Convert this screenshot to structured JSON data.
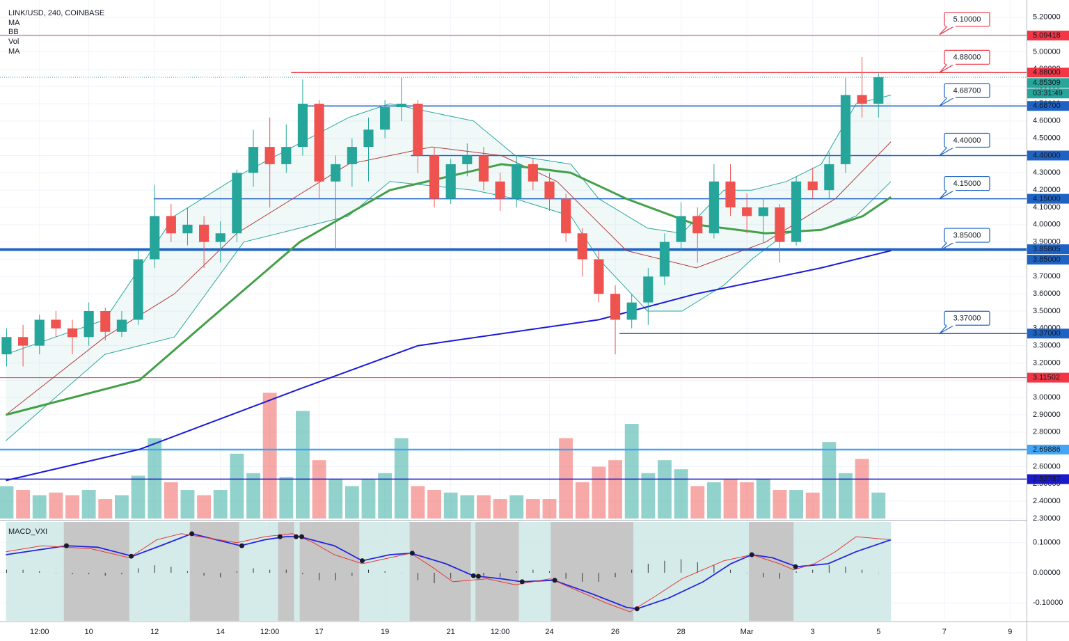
{
  "chart_data": {
    "type": "candlestick",
    "title": "LINK/USD, 240, COINBASE",
    "indicator_labels": [
      "MA",
      "BB",
      "Vol",
      "MA"
    ],
    "xlim": [
      7.3,
      38.5
    ],
    "xticks": [
      {
        "value": 8.5,
        "label": "12:00"
      },
      10,
      12,
      14,
      {
        "value": 15.5,
        "label": "12:00"
      },
      17,
      19,
      21,
      {
        "value": 22.5,
        "label": "12:00"
      },
      24,
      26,
      28,
      {
        "value": 30,
        "label": "Mar"
      },
      {
        "value": 32,
        "label": "3"
      },
      {
        "value": 34,
        "label": "5"
      },
      {
        "value": 36,
        "label": "7"
      },
      {
        "value": 38,
        "label": "9"
      }
    ],
    "ylim": [
      2.3,
      5.3
    ],
    "yticks": [
      {
        "value": 5.2,
        "label": "5.20000"
      },
      {
        "value": 5.1,
        "label": "5.10000"
      },
      {
        "value": 5.0,
        "label": "5.00000"
      },
      {
        "value": 4.9,
        "label": "4.90000"
      },
      {
        "value": 4.8,
        "label": "4.80000"
      },
      {
        "value": 4.7,
        "label": "4.70000"
      },
      {
        "value": 4.6,
        "label": "4.60000"
      },
      {
        "value": 4.5,
        "label": "4.50000"
      },
      {
        "value": 4.4,
        "label": "4.40000"
      },
      {
        "value": 4.3,
        "label": "4.30000"
      },
      {
        "value": 4.2,
        "label": "4.20000"
      },
      {
        "value": 4.1,
        "label": "4.10000"
      },
      {
        "value": 4.0,
        "label": "4.00000"
      },
      {
        "value": 3.9,
        "label": "3.90000"
      },
      {
        "value": 3.8,
        "label": "3.80000"
      },
      {
        "value": 3.7,
        "label": "3.70000"
      },
      {
        "value": 3.6,
        "label": "3.60000"
      },
      {
        "value": 3.5,
        "label": "3.50000"
      },
      {
        "value": 3.4,
        "label": "3.40000"
      },
      {
        "value": 3.3,
        "label": "3.30000"
      },
      {
        "value": 3.2,
        "label": "3.20000"
      },
      {
        "value": 3.1,
        "label": "3.10000"
      },
      {
        "value": 3.0,
        "label": "3.00000"
      },
      {
        "value": 2.9,
        "label": "2.90000"
      },
      {
        "value": 2.8,
        "label": "2.80000"
      },
      {
        "value": 2.7,
        "label": "2.70000"
      },
      {
        "value": 2.6,
        "label": "2.60000"
      },
      {
        "value": 2.5,
        "label": "2.50000"
      },
      {
        "value": 2.4,
        "label": "2.40000"
      },
      {
        "value": 2.3,
        "label": "2.30000"
      }
    ],
    "grid": true,
    "up_color": "#26a69a",
    "down_color": "#ef5350",
    "candles": {
      "x": [
        7.5,
        8,
        8.5,
        9,
        9.5,
        10,
        10.5,
        11,
        11.5,
        12,
        12.5,
        13,
        13.5,
        14,
        14.5,
        15,
        15.5,
        16,
        16.5,
        17,
        17.5,
        18,
        18.5,
        19,
        19.5,
        20,
        20.5,
        21,
        21.5,
        22,
        22.5,
        23,
        23.5,
        24,
        24.5,
        25,
        25.5,
        26,
        26.5,
        27,
        27.5,
        28,
        28.5,
        29,
        29.5,
        30,
        30.5,
        31,
        31.5,
        32,
        32.5,
        33,
        33.5,
        34
      ],
      "open": [
        3.25,
        3.35,
        3.3,
        3.45,
        3.4,
        3.35,
        3.5,
        3.38,
        3.45,
        3.8,
        4.05,
        3.95,
        4.0,
        3.9,
        3.95,
        4.3,
        4.45,
        4.35,
        4.45,
        4.7,
        4.25,
        4.35,
        4.45,
        4.55,
        4.68,
        4.7,
        4.4,
        4.15,
        4.35,
        4.4,
        4.25,
        4.15,
        4.35,
        4.25,
        4.15,
        3.95,
        3.8,
        3.6,
        3.45,
        3.55,
        3.7,
        3.9,
        4.05,
        3.95,
        4.25,
        4.1,
        4.05,
        4.1,
        3.9,
        4.25,
        4.2,
        4.35,
        4.75,
        4.7
      ],
      "high": [
        3.4,
        3.42,
        3.48,
        3.5,
        3.45,
        3.55,
        3.52,
        3.5,
        3.85,
        4.23,
        4.12,
        4.1,
        4.05,
        4.02,
        4.32,
        4.55,
        4.62,
        4.58,
        4.84,
        4.72,
        4.4,
        4.5,
        4.62,
        4.72,
        4.85,
        4.72,
        4.45,
        4.38,
        4.47,
        4.45,
        4.3,
        4.4,
        4.38,
        4.3,
        4.18,
        3.98,
        3.85,
        3.65,
        3.6,
        3.75,
        3.95,
        4.13,
        4.1,
        4.35,
        4.35,
        4.18,
        4.15,
        4.12,
        4.28,
        4.33,
        4.42,
        4.85,
        4.97,
        4.88
      ],
      "low": [
        3.18,
        3.18,
        3.25,
        3.35,
        3.25,
        3.3,
        3.33,
        3.35,
        3.42,
        3.75,
        3.9,
        3.88,
        3.75,
        3.78,
        3.9,
        4.22,
        4.1,
        4.3,
        4.4,
        4.15,
        3.85,
        4.22,
        4.25,
        4.5,
        4.6,
        4.3,
        4.1,
        4.12,
        4.28,
        4.2,
        4.08,
        4.1,
        4.2,
        4.08,
        3.9,
        3.7,
        3.55,
        3.25,
        3.4,
        3.42,
        3.65,
        3.85,
        3.78,
        3.92,
        4.05,
        3.95,
        3.9,
        3.78,
        3.88,
        4.15,
        4.15,
        4.3,
        4.62,
        4.62
      ],
      "close": [
        3.35,
        3.3,
        3.45,
        3.4,
        3.35,
        3.5,
        3.38,
        3.45,
        3.8,
        4.05,
        3.95,
        4.0,
        3.9,
        3.95,
        4.3,
        4.45,
        4.35,
        4.45,
        4.7,
        4.25,
        4.35,
        4.45,
        4.55,
        4.68,
        4.7,
        4.4,
        4.15,
        4.35,
        4.4,
        4.25,
        4.15,
        4.35,
        4.25,
        4.15,
        3.95,
        3.8,
        3.6,
        3.45,
        3.55,
        3.7,
        3.9,
        4.05,
        3.95,
        4.25,
        4.1,
        4.05,
        4.1,
        3.9,
        4.25,
        4.2,
        4.35,
        4.75,
        4.7,
        4.85309
      ]
    },
    "volume": {
      "lim": [
        0,
        400
      ],
      "values": [
        25,
        22,
        18,
        20,
        18,
        22,
        15,
        18,
        33,
        62,
        28,
        22,
        18,
        22,
        50,
        35,
        97,
        32,
        83,
        45,
        30,
        25,
        30,
        35,
        62,
        25,
        22,
        20,
        18,
        18,
        15,
        18,
        15,
        15,
        62,
        28,
        40,
        45,
        73,
        35,
        45,
        38,
        25,
        28,
        30,
        28,
        30,
        22,
        22,
        20,
        59,
        35,
        46,
        20
      ]
    },
    "band": {
      "color": "#26a69a",
      "x": [
        7.48,
        10.49,
        12.6,
        14.71,
        17.89,
        19.15,
        21.69,
        22.96,
        24.65,
        25.5,
        26.98,
        28.03,
        29.3,
        30.15,
        31.2,
        32.26,
        33.32,
        34.38
      ],
      "upper": [
        3.25,
        3.45,
        4.05,
        4.3,
        4.62,
        4.7,
        4.6,
        4.4,
        4.35,
        4.15,
        3.98,
        3.95,
        4.2,
        4.2,
        4.25,
        4.35,
        4.7,
        4.75
      ],
      "lower": [
        2.75,
        3.25,
        3.35,
        3.9,
        4.05,
        4.25,
        4.2,
        4.15,
        4.05,
        3.8,
        3.5,
        3.5,
        3.65,
        3.8,
        3.95,
        3.97,
        4.05,
        4.25
      ]
    },
    "lines": [
      {
        "color": "#b23a3a",
        "width": 1,
        "x": [
          7.48,
          10.49,
          12.6,
          14.5,
          17.89,
          20.42,
          22.54,
          24.23,
          26.34,
          28.46,
          30.57,
          32.69,
          34.38
        ],
        "values": [
          2.9,
          3.35,
          3.6,
          3.95,
          4.35,
          4.45,
          4.4,
          4.25,
          3.85,
          3.75,
          3.9,
          4.15,
          4.48
        ]
      },
      {
        "color": "#43a047",
        "width": 3,
        "x": [
          7.48,
          11.54,
          13.66,
          16.41,
          19.15,
          22.54,
          24.65,
          26.34,
          28.46,
          30.57,
          32.26,
          33.53,
          34.38
        ],
        "values": [
          2.9,
          3.1,
          3.45,
          3.9,
          4.2,
          4.35,
          4.3,
          4.15,
          4.0,
          3.95,
          3.97,
          4.05,
          4.16
        ]
      },
      {
        "color": "#1a1ad6",
        "width": 2,
        "x": [
          7.48,
          11.54,
          16.41,
          20.0,
          25.5,
          28.46,
          32.26,
          34.38
        ],
        "values": [
          2.52,
          2.7,
          3.05,
          3.3,
          3.45,
          3.6,
          3.75,
          3.85
        ]
      }
    ],
    "levels": [
      {
        "value": 5.09418,
        "label": "5.09418",
        "color": "#f23645",
        "width": 1,
        "start": null
      },
      {
        "value": 4.88,
        "label": "4.88000",
        "color": "#f23645",
        "width": 1.5,
        "start": 16.15
      },
      {
        "value": 4.687,
        "label": "4.68700",
        "color": "#1e63c4",
        "width": 1.5,
        "start": 16.36
      },
      {
        "value": 4.4,
        "label": "4.40000",
        "color": "#1e63c4",
        "width": 1.5,
        "start": 19.79
      },
      {
        "value": 4.15,
        "label": "4.15000",
        "color": "#1e63c4",
        "width": 1.5,
        "start": 11.97
      },
      {
        "value": 3.85805,
        "label": "3.85805",
        "color": "#1e63c4",
        "width": 3,
        "start": null
      },
      {
        "value": 3.85,
        "label": "3.85000",
        "color": "#1e63c4",
        "width": 1,
        "start": null
      },
      {
        "value": 3.37,
        "label": "3.37000",
        "color": "#1e63c4",
        "width": 1.5,
        "start": 26.13
      },
      {
        "value": 3.11502,
        "label": "3.11502",
        "color": "#f23645",
        "width": 1,
        "start": null
      },
      {
        "value": 2.69886,
        "label": "2.69886",
        "color": "#42a5f5",
        "width": 2.5,
        "start": null
      },
      {
        "value": 2.52787,
        "label": "2.52787",
        "color": "#1a1acc",
        "width": 1.5,
        "start": null
      }
    ],
    "callouts": [
      {
        "value": 5.1,
        "label": "5.10000",
        "color": "#f23645"
      },
      {
        "value": 4.88,
        "label": "4.88000",
        "color": "#f23645"
      },
      {
        "value": 4.687,
        "label": "4.68700",
        "color": "#1e63c4"
      },
      {
        "value": 4.4,
        "label": "4.40000",
        "color": "#1e63c4"
      },
      {
        "value": 4.15,
        "label": "4.15000",
        "color": "#1e63c4"
      },
      {
        "value": 3.85,
        "label": "3.85000",
        "color": "#1e63c4"
      },
      {
        "value": 3.37,
        "label": "3.37000",
        "color": "#1e63c4"
      }
    ],
    "last_price": {
      "value": 4.85309,
      "label": "4.85309",
      "countdown": "03:31:49",
      "color": "#26a69a"
    },
    "macd": {
      "title": "MACD_VXI",
      "ylim": [
        -0.16,
        0.169
      ],
      "yticks": [
        {
          "value": 0.1,
          "label": "0.10000"
        },
        {
          "value": 0,
          "label": "0.00000"
        },
        {
          "value": -0.1,
          "label": "-0.10000"
        }
      ],
      "range": [
        7.48,
        34.38
      ],
      "range_color": "#cde7e6",
      "span_color": "#c6c6c6",
      "spans": [
        [
          9.24,
          11.23
        ],
        [
          13.07,
          14.57
        ],
        [
          15.75,
          16.24
        ],
        [
          16.41,
          18.22
        ],
        [
          19.75,
          21.61
        ],
        [
          21.75,
          23.07
        ],
        [
          24.04,
          26.55
        ],
        [
          30.06,
          31.42
        ]
      ],
      "histogram": [
        0.01,
        0.01,
        0.005,
        0,
        -0.005,
        -0.005,
        -0.01,
        -0.005,
        0.015,
        0.025,
        0.02,
        0.005,
        -0.01,
        -0.015,
        0.005,
        0.015,
        0.01,
        0.01,
        -0.005,
        -0.025,
        -0.025,
        -0.01,
        0.01,
        0.005,
        0,
        -0.025,
        -0.035,
        -0.02,
        -0.005,
        -0.01,
        -0.015,
        0.005,
        0.01,
        0.005,
        -0.02,
        -0.03,
        -0.03,
        -0.015,
        0.01,
        0.03,
        0.04,
        0.045,
        0.035,
        0.025,
        0.01,
        0,
        -0.015,
        -0.02,
        0.005,
        0.01,
        0.025,
        0.02,
        0.01,
        0
      ],
      "lines": [
        {
          "color": "#2424e0",
          "width": 1.8,
          "x": [
            7.48,
            9.32,
            10.27,
            11.33,
            12.18,
            13.13,
            13.87,
            14.61,
            15.35,
            15.98,
            16.41,
            17.46,
            18.31,
            19.15,
            19.79,
            20.85,
            21.69,
            22.54,
            23.17,
            24.12,
            25.29,
            26.34,
            26.66,
            27.61,
            28.67,
            29.51,
            30.15,
            30.78,
            31.52,
            32.47,
            33.32,
            34.38
          ],
          "values": [
            0.06,
            0.09,
            0.085,
            0.055,
            0.09,
            0.13,
            0.11,
            0.09,
            0.11,
            0.12,
            0.12,
            0.09,
            0.04,
            0.06,
            0.065,
            0.03,
            -0.01,
            -0.02,
            -0.03,
            -0.025,
            -0.07,
            -0.115,
            -0.12,
            -0.085,
            -0.03,
            0.03,
            0.06,
            0.05,
            0.02,
            0.03,
            0.07,
            0.11
          ]
        },
        {
          "color": "#e53935",
          "width": 1,
          "x": [
            7.48,
            8.58,
            10.06,
            11.23,
            12.07,
            12.81,
            14.5,
            15.35,
            16.19,
            16.83,
            17.46,
            18.31,
            19.15,
            19.79,
            20.42,
            21.06,
            22.11,
            22.96,
            24.02,
            24.86,
            25.71,
            26.45,
            27.19,
            28.03,
            29.3,
            30.15,
            30.99,
            31.42,
            32.05,
            32.69,
            33.32,
            34.38
          ],
          "values": [
            0.07,
            0.09,
            0.08,
            0.05,
            0.11,
            0.13,
            0.1,
            0.12,
            0.13,
            0.1,
            0.06,
            0.03,
            0.05,
            0.065,
            0.02,
            -0.03,
            -0.02,
            -0.04,
            -0.02,
            -0.06,
            -0.1,
            -0.13,
            -0.08,
            -0.02,
            0.04,
            0.06,
            0.03,
            0.01,
            0.03,
            0.07,
            0.12,
            0.11
          ]
        }
      ],
      "crosses": {
        "x": [
          9.32,
          11.29,
          13.13,
          14.65,
          15.81,
          16.3,
          16.47,
          18.31,
          19.83,
          21.69,
          21.84,
          23.17,
          24.16,
          26.66,
          30.15,
          31.48
        ],
        "values": [
          0.09,
          0.055,
          0.13,
          0.09,
          0.12,
          0.12,
          0.12,
          0.04,
          0.065,
          -0.01,
          -0.012,
          -0.03,
          -0.025,
          -0.12,
          0.06,
          0.02
        ]
      }
    }
  }
}
